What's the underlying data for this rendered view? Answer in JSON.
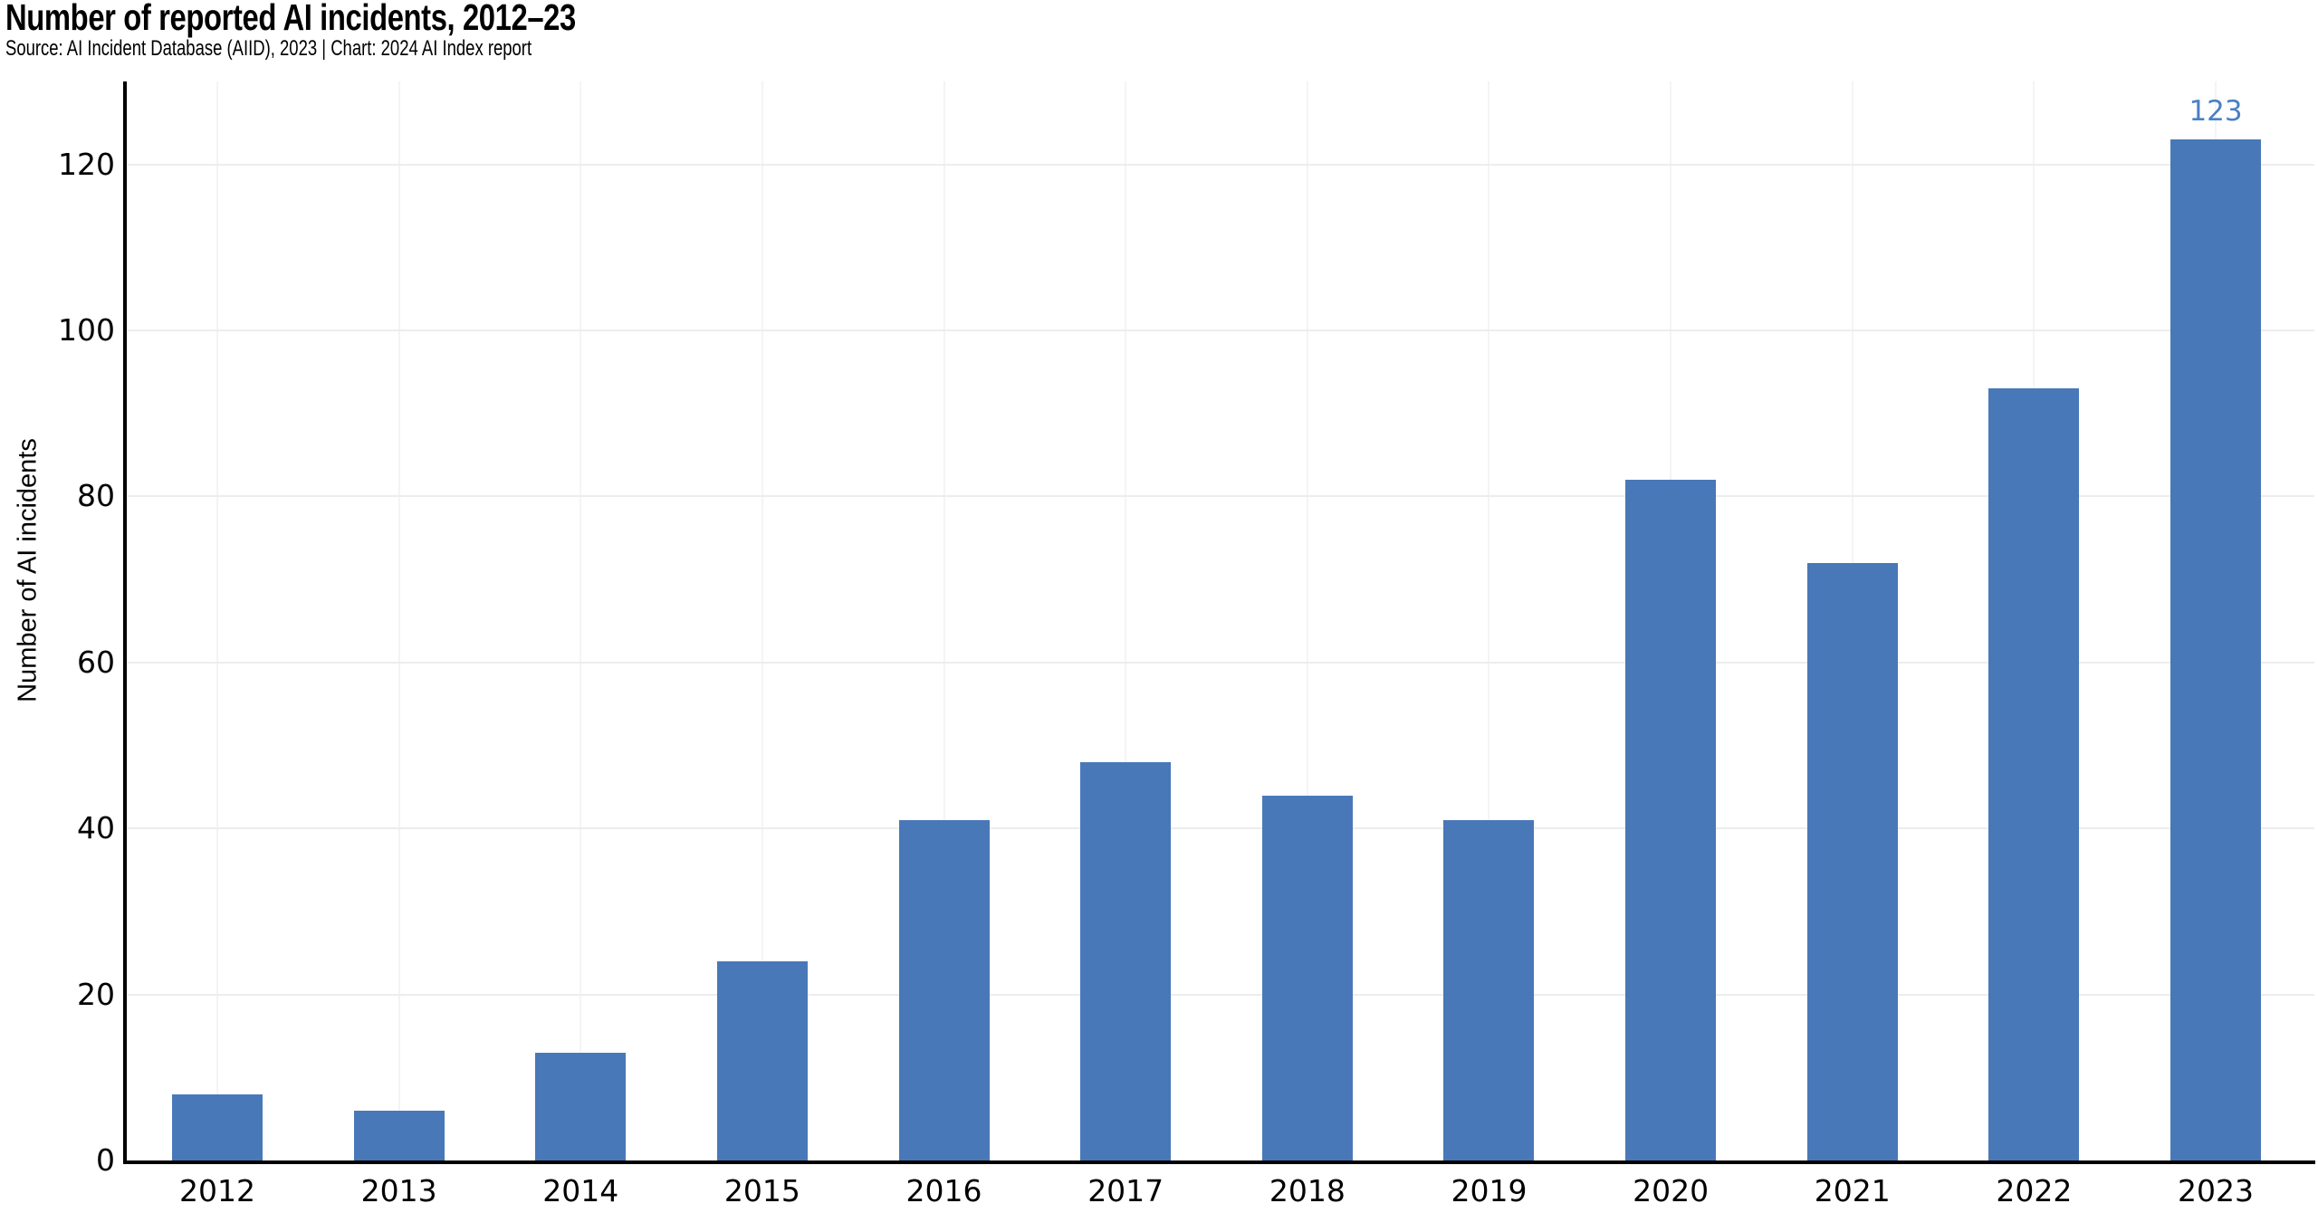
{
  "header": {
    "title": "Number of reported AI incidents, 2012–23",
    "subtitle": "Source: AI Incident Database (AIID), 2023 | Chart: 2024 AI Index report"
  },
  "chart_data": {
    "type": "bar",
    "title": "Number of reported AI incidents, 2012–23",
    "subtitle": "Source: AI Incident Database (AIID), 2023 | Chart: 2024 AI Index report",
    "categories": [
      "2012",
      "2013",
      "2014",
      "2015",
      "2016",
      "2017",
      "2018",
      "2019",
      "2020",
      "2021",
      "2022",
      "2023"
    ],
    "values": [
      8,
      6,
      13,
      24,
      41,
      48,
      44,
      41,
      82,
      72,
      93,
      123
    ],
    "xlabel": "",
    "ylabel": "Number of AI incidents",
    "ylim": [
      0,
      130
    ],
    "yticks": [
      0,
      20,
      40,
      60,
      80,
      100,
      120
    ],
    "grid": {
      "horizontal": true,
      "vertical": true
    },
    "legend": "none",
    "annotations": [
      {
        "category": "2023",
        "label": "123"
      }
    ],
    "colors": {
      "bar": "#4878b8",
      "annotation": "#4a7fc4",
      "axis": "#000000",
      "gridline_horizontal": "#ededed",
      "gridline_vertical": "#f4f4f4",
      "text": "#000000",
      "background": "#ffffff"
    }
  }
}
